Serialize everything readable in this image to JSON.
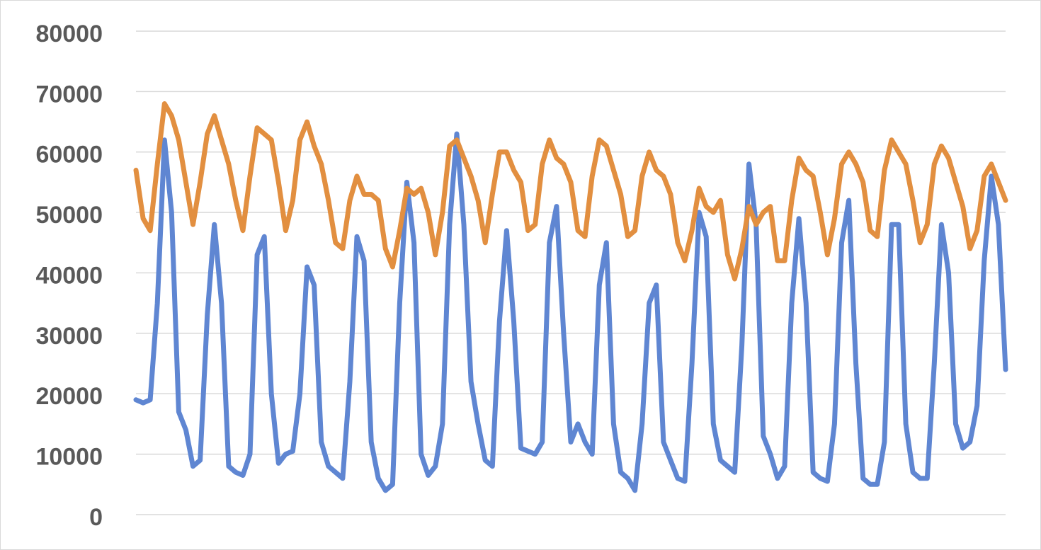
{
  "chart_data": {
    "type": "line",
    "categories": [
      null,
      null,
      null,
      null,
      null,
      null,
      null,
      null,
      null,
      null,
      null,
      null,
      null,
      null,
      null,
      null,
      null,
      null,
      null,
      null,
      null,
      null,
      null,
      null,
      null,
      null,
      null,
      null,
      null,
      null,
      null,
      null,
      null,
      null,
      null,
      null,
      null,
      null,
      null,
      null,
      null,
      null,
      null,
      null,
      null,
      null,
      null,
      null,
      null,
      null,
      null,
      null,
      null,
      null,
      null,
      null,
      null,
      null,
      null,
      null,
      null,
      null,
      null,
      null,
      null,
      null,
      null,
      null,
      null,
      null,
      null,
      null,
      null,
      null,
      null,
      null,
      null,
      null,
      null,
      null,
      null,
      null,
      null,
      null,
      null,
      null,
      null,
      null,
      null,
      null,
      null,
      null,
      null,
      null,
      null,
      null,
      null,
      null,
      null,
      null,
      null,
      null,
      null,
      null,
      null,
      null,
      null,
      null,
      null,
      null,
      null,
      null,
      null,
      null,
      null,
      null,
      null,
      null,
      null,
      null,
      null,
      null,
      null
    ],
    "series": [
      {
        "color": "#5f86d2",
        "values": [
          19000,
          18500,
          19000,
          35000,
          62000,
          50000,
          17000,
          14000,
          8000,
          9000,
          33000,
          48000,
          35000,
          8000,
          7000,
          6500,
          10000,
          43000,
          46000,
          20000,
          8500,
          10000,
          10500,
          20000,
          41000,
          38000,
          12000,
          8000,
          7000,
          6000,
          22000,
          46000,
          42000,
          12000,
          6000,
          4000,
          5000,
          35000,
          55000,
          45000,
          10000,
          6500,
          8000,
          15000,
          48000,
          63000,
          48000,
          22000,
          15000,
          9000,
          8000,
          32000,
          47000,
          32000,
          11000,
          10500,
          10000,
          12000,
          45000,
          51000,
          30000,
          12000,
          15000,
          12000,
          10000,
          38000,
          45000,
          15000,
          7000,
          6000,
          4000,
          15000,
          35000,
          38000,
          12000,
          9000,
          6000,
          5500,
          25000,
          50000,
          46000,
          15000,
          9000,
          8000,
          7000,
          28000,
          58000,
          48000,
          13000,
          10000,
          6000,
          8000,
          35000,
          49000,
          35000,
          7000,
          6000,
          5500,
          15000,
          45000,
          52000,
          25000,
          6000,
          5000,
          5000,
          12000,
          48000,
          48000,
          15000,
          7000,
          6000,
          6000,
          25000,
          48000,
          40000,
          15000,
          11000,
          12000,
          18000,
          42000,
          56000,
          48000,
          24000
        ]
      },
      {
        "color": "#e28f40",
        "values": [
          57000,
          49000,
          47000,
          58000,
          68000,
          66000,
          62000,
          55000,
          48000,
          55000,
          63000,
          66000,
          62000,
          58000,
          52000,
          47000,
          56000,
          64000,
          63000,
          62000,
          55000,
          47000,
          52000,
          62000,
          65000,
          61000,
          58000,
          52000,
          45000,
          44000,
          52000,
          56000,
          53000,
          53000,
          52000,
          44000,
          41000,
          47000,
          54000,
          53000,
          54000,
          50000,
          43000,
          50000,
          61000,
          62000,
          59000,
          56000,
          52000,
          45000,
          53000,
          60000,
          60000,
          57000,
          55000,
          47000,
          48000,
          58000,
          62000,
          59000,
          58000,
          55000,
          47000,
          46000,
          56000,
          62000,
          61000,
          57000,
          53000,
          46000,
          47000,
          56000,
          60000,
          57000,
          56000,
          53000,
          45000,
          42000,
          47000,
          54000,
          51000,
          50000,
          52000,
          43000,
          39000,
          44000,
          51000,
          48000,
          50000,
          51000,
          42000,
          42000,
          52000,
          59000,
          57000,
          56000,
          50000,
          43000,
          49000,
          58000,
          60000,
          58000,
          55000,
          47000,
          46000,
          57000,
          62000,
          60000,
          58000,
          52000,
          45000,
          48000,
          58000,
          61000,
          59000,
          55000,
          51000,
          44000,
          47000,
          56000,
          58000,
          55000,
          52000
        ]
      }
    ],
    "ylim": [
      0,
      80000
    ],
    "yticks": [
      0,
      10000,
      20000,
      30000,
      40000,
      50000,
      60000,
      70000,
      80000
    ],
    "grid": true
  }
}
